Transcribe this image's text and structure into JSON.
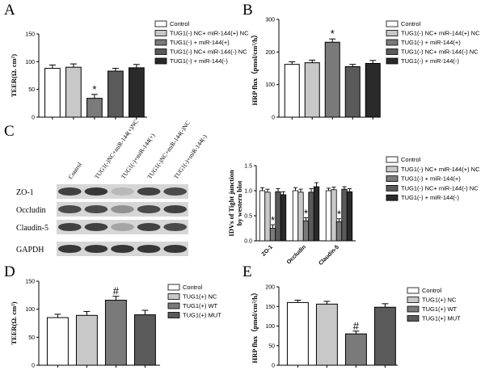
{
  "colors": {
    "Control": "#ffffff",
    "c1": "#c8c8c8",
    "c2": "#7a7a7a",
    "c3": "#5a5a5a",
    "c4": "#2a2a2a"
  },
  "chart_data": [
    {
      "id": "A",
      "panel_label": "A",
      "type": "bar",
      "ylabel": "TEER(Ω. cm²)",
      "ylim": [
        0,
        150
      ],
      "yticks": [
        0,
        50,
        100,
        150
      ],
      "categories": [
        "Control",
        "TUG1(-) NC+ miR-144(+) NC",
        "TUG1(-) + miR-144(+)",
        "TUG1(-) NC+ miR-144(-) NC",
        "TUG1(-) + miR-144(-)"
      ],
      "values": [
        88,
        90,
        34,
        83,
        89
      ],
      "errors": [
        6,
        6,
        7,
        5,
        6
      ],
      "significance": [
        "",
        "",
        "*",
        "",
        ""
      ],
      "legend": [
        "Control",
        "TUG1(-) NC+ miR-144(+) NC",
        "TUG1(-) + miR-144(+)",
        "TUG1(-) NC+ miR-144(-) NC",
        "TUG1(-) + miR-144(-)"
      ],
      "legend_position": "right"
    },
    {
      "id": "B",
      "panel_label": "B",
      "type": "bar",
      "ylabel": "HRP flux（pmol/cm²/h）",
      "ylim": [
        0,
        300
      ],
      "yticks": [
        0,
        100,
        200,
        300
      ],
      "categories": [
        "Control",
        "TUG1(-) NC+ miR-144(+) NC",
        "TUG1(-) + miR-144(+)",
        "TUG1(-) NC+ miR-144(-) NC",
        "TUG1(-) + miR-144(-)"
      ],
      "values": [
        162,
        167,
        230,
        155,
        165
      ],
      "errors": [
        8,
        8,
        10,
        7,
        9
      ],
      "significance": [
        "",
        "",
        "*",
        "",
        ""
      ],
      "legend": [
        "Control",
        "TUG1(-) NC+ miR-144(+) NC",
        "TUG1(-) + miR-144(+)",
        "TUG1(-) NC+ miR-144(-) NC",
        "TUG1(-) + miR-144(-)"
      ],
      "legend_position": "right"
    },
    {
      "id": "C",
      "panel_label": "C",
      "type": "bar",
      "ylabel": "IDVs of Tight junction by western blot",
      "ylim": [
        0,
        1.5
      ],
      "yticks": [
        0.0,
        0.5,
        1.0,
        1.5
      ],
      "categories": [
        "ZO-1",
        "Occludin",
        "Claudin-5"
      ],
      "series": [
        {
          "name": "Control",
          "values": [
            1.0,
            1.0,
            1.0
          ],
          "errors": [
            0.06,
            0.06,
            0.05
          ],
          "sig": [
            "",
            "",
            ""
          ]
        },
        {
          "name": "TUG1(-) NC+ miR-144(+) NC",
          "values": [
            0.97,
            0.97,
            1.02
          ],
          "errors": [
            0.06,
            0.06,
            0.05
          ],
          "sig": [
            "",
            "",
            ""
          ]
        },
        {
          "name": "TUG1(-) + miR-144(+)",
          "values": [
            0.25,
            0.4,
            0.38
          ],
          "errors": [
            0.07,
            0.06,
            0.06
          ],
          "sig": [
            "*",
            "*",
            "*"
          ]
        },
        {
          "name": "TUG1(-) NC+ miR-144(-) NC",
          "values": [
            0.98,
            0.97,
            1.03
          ],
          "errors": [
            0.06,
            0.07,
            0.05
          ],
          "sig": [
            "",
            "",
            ""
          ]
        },
        {
          "name": "TUG1(-) + miR-144(-)",
          "values": [
            0.92,
            1.08,
            0.98
          ],
          "errors": [
            0.06,
            0.08,
            0.06
          ],
          "sig": [
            "",
            "",
            ""
          ]
        }
      ],
      "legend": [
        "Control",
        "TUG1(-) NC+ miR-144(+) NC",
        "TUG1(-) + miR-144(+)",
        "TUG1(-) NC+ miR-144(-) NC",
        "TUG1(-) + miR-144(-)"
      ],
      "legend_position": "top-right"
    },
    {
      "id": "D",
      "panel_label": "D",
      "type": "bar",
      "ylabel": "TEER(Ω. cm²)",
      "ylim": [
        0,
        150
      ],
      "yticks": [
        0,
        50,
        100,
        150
      ],
      "categories": [
        "Control",
        "TUG1(+) NC",
        "TUG1(+) WT",
        "TUG1(+) MUT"
      ],
      "values": [
        85,
        89,
        116,
        90
      ],
      "errors": [
        6,
        7,
        7,
        8
      ],
      "significance": [
        "",
        "",
        "#",
        ""
      ],
      "legend": [
        "Control",
        "TUG1(+) NC",
        "TUG1(+) WT",
        "TUG1(+) MUT"
      ],
      "legend_position": "right"
    },
    {
      "id": "E",
      "panel_label": "E",
      "type": "bar",
      "ylabel": "HRP flux（pmol/cm²/h）",
      "ylim": [
        0,
        200
      ],
      "yticks": [
        0,
        50,
        100,
        150,
        200
      ],
      "categories": [
        "Control",
        "TUG1(+) NC",
        "TUG1(+) WT",
        "TUG1(+) MUT"
      ],
      "values": [
        160,
        156,
        80,
        148
      ],
      "errors": [
        6,
        7,
        7,
        9
      ],
      "significance": [
        "",
        "",
        "#",
        ""
      ],
      "legend": [
        "Control",
        "TUG1(+) NC",
        "TUG1(+) WT",
        "TUG1(+) MUT"
      ],
      "legend_position": "right"
    }
  ],
  "western_blot": {
    "lanes": [
      "Control",
      "TUG1(-)NC+miR-144(+)NC",
      "TUG1(-)+miR-144(+)",
      "TUG1(-)NC+miR-144(-)NC",
      "TUG1(-)+miR-144(-)"
    ],
    "rows": [
      {
        "name": "ZO-1",
        "intensity": [
          0.85,
          0.9,
          0.25,
          0.85,
          0.8
        ]
      },
      {
        "name": "Occludin",
        "intensity": [
          0.8,
          0.8,
          0.45,
          0.8,
          0.85
        ]
      },
      {
        "name": "Claudin-5",
        "intensity": [
          0.85,
          0.85,
          0.35,
          0.85,
          0.8
        ]
      },
      {
        "name": "GAPDH",
        "intensity": [
          0.9,
          0.9,
          0.9,
          0.9,
          0.9
        ]
      }
    ]
  }
}
